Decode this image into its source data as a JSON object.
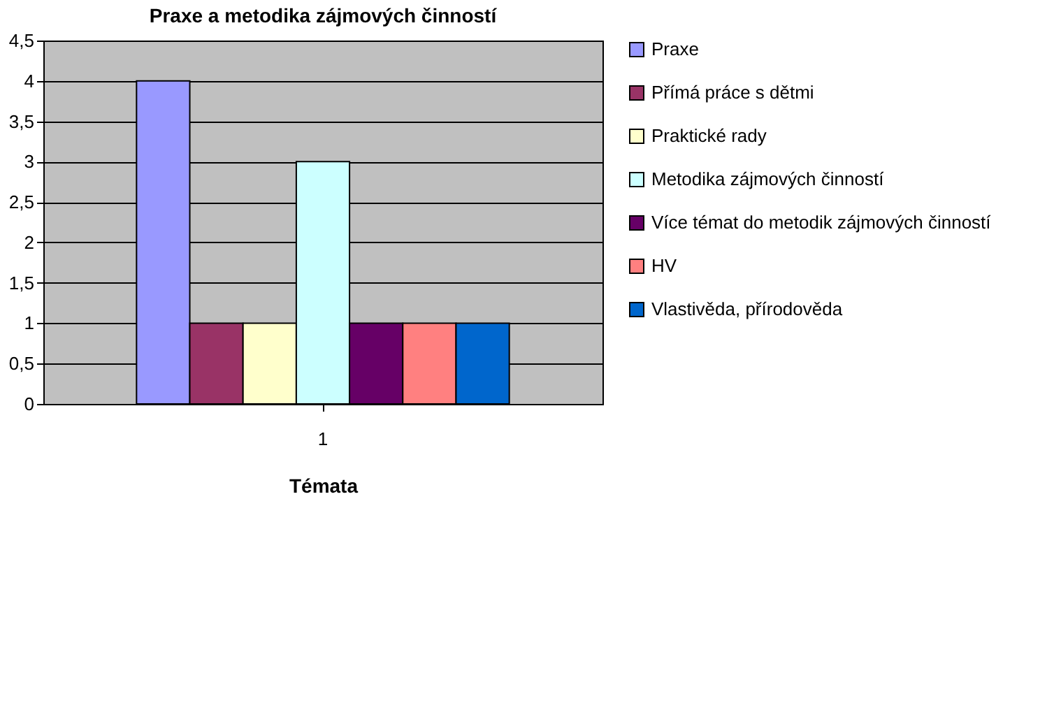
{
  "chart_data": {
    "type": "bar",
    "title": "Praxe a metodika zájmových činností",
    "xlabel": "Témata",
    "categories": [
      "1"
    ],
    "series": [
      {
        "name": "Praxe",
        "color": "#9999ff",
        "values": [
          4
        ]
      },
      {
        "name": "Přímá práce s dětmi",
        "color": "#993366",
        "values": [
          1
        ]
      },
      {
        "name": "Praktické rady",
        "color": "#ffffcc",
        "values": [
          1
        ]
      },
      {
        "name": "Metodika zájmových činností",
        "color": "#ccffff",
        "values": [
          3
        ]
      },
      {
        "name": "Více témat do metodik zájmových činností",
        "color": "#660066",
        "values": [
          1
        ]
      },
      {
        "name": "HV",
        "color": "#ff8080",
        "values": [
          1
        ]
      },
      {
        "name": "Vlastivěda, přírodověda",
        "color": "#0066cc",
        "values": [
          1
        ]
      }
    ],
    "ylim": [
      0,
      4.5
    ],
    "yticks": [
      0,
      {
        "value": 0.5,
        "label": "0,5"
      },
      1,
      {
        "value": 1.5,
        "label": "1,5"
      },
      2,
      {
        "value": 2.5,
        "label": "2,5"
      },
      3,
      {
        "value": 3.5,
        "label": "3,5"
      },
      4,
      {
        "value": 4.5,
        "label": "4,5"
      }
    ],
    "grid": "y",
    "legend": "right"
  }
}
